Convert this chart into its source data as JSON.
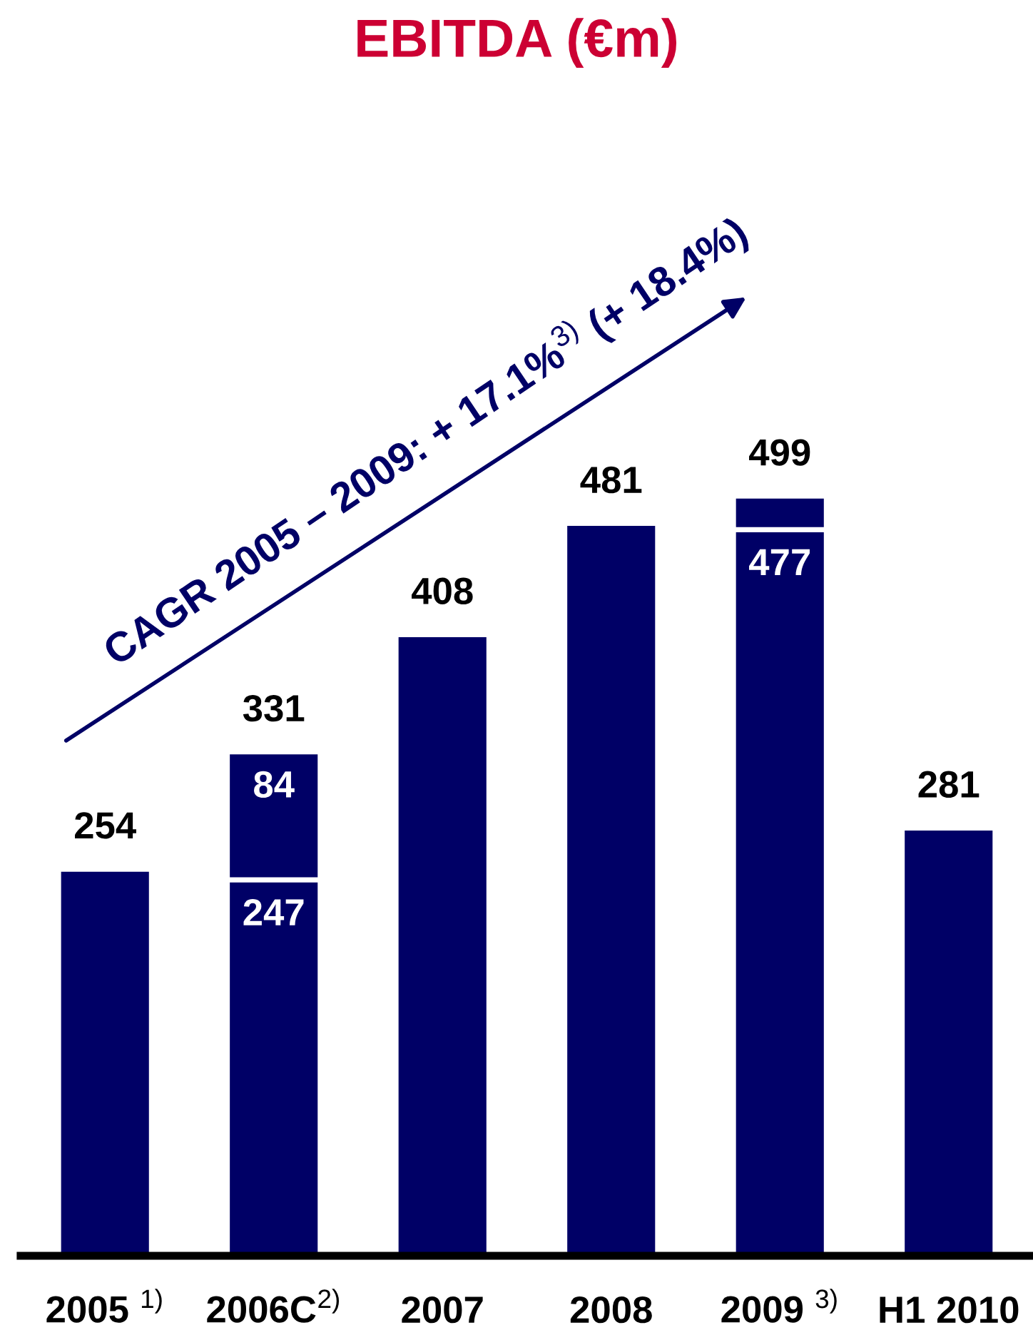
{
  "chart_data": {
    "type": "bar",
    "title": "EBITDA (€m)",
    "stacked": true,
    "categories": [
      "2005 $^{1)}$",
      "2006C$^{2)}$",
      "2007",
      "2008",
      "2009 $^{3)}$",
      "H1 2010"
    ],
    "series": [
      {
        "color": "#000066",
        "values": [
          254,
          247,
          408,
          481,
          477,
          281
        ],
        "value_labels": [
          null,
          "247",
          null,
          null,
          "477",
          null
        ]
      },
      {
        "color": "#000066",
        "values": [
          null,
          84,
          null,
          null,
          22,
          null
        ],
        "value_labels": [
          null,
          "84",
          null,
          null,
          null,
          null
        ]
      }
    ],
    "totals": [
      "254",
      "331",
      "408",
      "481",
      "499",
      "281"
    ],
    "tick_labels": "x",
    "grid": false,
    "legend": false,
    "annotations": [
      "CAGR 2005 – 2009: + 17.1%$^{3)}$ (+ 18.4%)"
    ]
  }
}
